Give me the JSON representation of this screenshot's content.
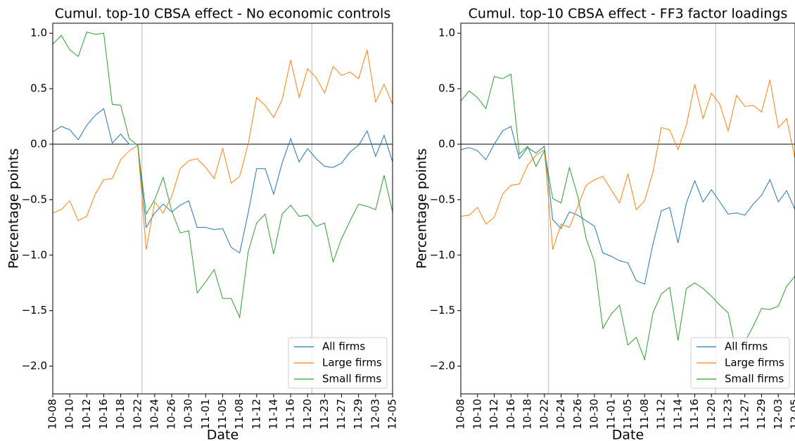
{
  "chart_data": [
    {
      "type": "line",
      "title": "Cumul. top-10 CBSA effect - No economic controls",
      "xlabel": "Date",
      "ylabel": "Percentage points",
      "categories": [
        "10-08",
        null,
        "10-10",
        null,
        "10-12",
        null,
        "10-16",
        null,
        "10-18",
        null,
        "10-22",
        null,
        "10-24",
        null,
        "10-26",
        null,
        "10-30",
        null,
        "11-01",
        null,
        "11-05",
        null,
        "11-08",
        null,
        "11-12",
        null,
        "11-14",
        null,
        "11-16",
        null,
        "11-20",
        null,
        "11-23",
        null,
        "11-27",
        null,
        "11-29",
        null,
        "12-03",
        null,
        "12-05"
      ],
      "series": [
        {
          "name": "All firms",
          "color": "#1f77b4",
          "values": [
            0.11,
            0.16,
            0.13,
            0.04,
            0.17,
            0.26,
            0.32,
            0.01,
            0.09,
            0.0,
            0.0,
            -0.75,
            -0.62,
            -0.54,
            -0.61,
            -0.55,
            -0.51,
            -0.75,
            -0.75,
            -0.77,
            -0.76,
            -0.93,
            -0.98,
            -0.62,
            -0.22,
            -0.22,
            -0.45,
            -0.17,
            0.05,
            -0.16,
            -0.04,
            -0.13,
            -0.2,
            -0.21,
            -0.17,
            -0.07,
            -0.01,
            0.12,
            -0.11,
            0.08,
            -0.16
          ]
        },
        {
          "name": "Large firms",
          "color": "#ff7f0e",
          "values": [
            -0.62,
            -0.59,
            -0.51,
            -0.69,
            -0.65,
            -0.45,
            -0.32,
            -0.31,
            -0.14,
            -0.06,
            -0.01,
            -0.95,
            -0.52,
            -0.62,
            -0.47,
            -0.22,
            -0.15,
            -0.13,
            -0.21,
            -0.31,
            -0.04,
            -0.35,
            -0.29,
            0.0,
            0.42,
            0.35,
            0.24,
            0.4,
            0.76,
            0.42,
            0.68,
            0.6,
            0.46,
            0.7,
            0.62,
            0.65,
            0.59,
            0.85,
            0.38,
            0.54,
            0.36
          ]
        },
        {
          "name": "Small firms",
          "color": "#2ca02c",
          "values": [
            0.9,
            0.98,
            0.85,
            0.79,
            1.01,
            0.99,
            1.0,
            0.36,
            0.35,
            0.05,
            -0.01,
            -0.63,
            -0.5,
            -0.3,
            -0.6,
            -0.8,
            -0.78,
            -1.34,
            -1.24,
            -1.13,
            -1.39,
            -1.39,
            -1.56,
            -0.97,
            -0.71,
            -0.63,
            -0.99,
            -0.63,
            -0.55,
            -0.65,
            -0.64,
            -0.74,
            -0.71,
            -1.06,
            -0.85,
            -0.69,
            -0.54,
            -0.56,
            -0.59,
            -0.28,
            -0.61
          ]
        }
      ],
      "ylim": [
        -2.25,
        1.09
      ],
      "yticks": [
        {
          "value": -2.0,
          "label": "−2.0"
        },
        {
          "value": -1.5,
          "label": "−1.5"
        },
        {
          "value": -1.0,
          "label": "−1.0"
        },
        {
          "value": -0.5,
          "label": "−0.5"
        },
        {
          "value": 0.0,
          "label": "0.0"
        },
        0.5,
        {
          "value": 1.0,
          "label": "1.0"
        }
      ],
      "hline": 0,
      "vlines": [
        "10-22",
        "11-20"
      ],
      "legend": "lower right"
    },
    {
      "type": "line",
      "title": "Cumul. top-10 CBSA effect - FF3 factor loadings",
      "xlabel": "Date",
      "ylabel": "Percentage points",
      "categories": [
        "10-08",
        null,
        "10-10",
        null,
        "10-12",
        null,
        "10-16",
        null,
        "10-18",
        null,
        "10-22",
        null,
        "10-24",
        null,
        "10-26",
        null,
        "10-30",
        null,
        "11-01",
        null,
        "11-05",
        null,
        "11-08",
        null,
        "11-12",
        null,
        "11-14",
        null,
        "11-16",
        null,
        "11-20",
        null,
        "11-23",
        null,
        "11-27",
        null,
        "11-29",
        null,
        "12-03",
        null,
        "12-05"
      ],
      "series": [
        {
          "name": "All firms",
          "color": "#1f77b4",
          "values": [
            -0.05,
            -0.03,
            -0.06,
            -0.14,
            0.0,
            0.12,
            0.16,
            -0.13,
            -0.03,
            -0.08,
            -0.02,
            -0.68,
            -0.76,
            -0.61,
            -0.64,
            -0.69,
            -0.74,
            -0.98,
            -1.01,
            -1.05,
            -1.07,
            -1.23,
            -1.26,
            -0.9,
            -0.6,
            -0.57,
            -0.89,
            -0.53,
            -0.33,
            -0.52,
            -0.41,
            -0.52,
            -0.63,
            -0.62,
            -0.64,
            -0.54,
            -0.46,
            -0.32,
            -0.52,
            -0.42,
            -0.59
          ]
        },
        {
          "name": "Large firms",
          "color": "#ff7f0e",
          "values": [
            -0.65,
            -0.64,
            -0.57,
            -0.72,
            -0.66,
            -0.45,
            -0.37,
            -0.36,
            -0.19,
            -0.1,
            -0.05,
            -0.95,
            -0.72,
            -0.75,
            -0.56,
            -0.37,
            -0.32,
            -0.29,
            -0.41,
            -0.53,
            -0.27,
            -0.59,
            -0.51,
            -0.25,
            0.15,
            0.13,
            -0.05,
            0.17,
            0.54,
            0.23,
            0.46,
            0.36,
            0.12,
            0.44,
            0.34,
            0.35,
            0.29,
            0.58,
            0.15,
            0.23,
            -0.13
          ]
        },
        {
          "name": "Small firms",
          "color": "#2ca02c",
          "values": [
            0.39,
            0.48,
            0.42,
            0.32,
            0.61,
            0.59,
            0.63,
            -0.09,
            -0.02,
            -0.2,
            -0.06,
            -0.49,
            -0.53,
            -0.21,
            -0.47,
            -0.85,
            -1.06,
            -1.66,
            -1.53,
            -1.45,
            -1.81,
            -1.74,
            -1.94,
            -1.52,
            -1.35,
            -1.29,
            -1.77,
            -1.3,
            -1.25,
            -1.3,
            -1.37,
            -1.45,
            -1.52,
            -1.88,
            -1.78,
            -1.64,
            -1.48,
            -1.49,
            -1.46,
            -1.28,
            -1.19
          ]
        }
      ],
      "ylim": [
        -2.25,
        1.09
      ],
      "yticks": [
        {
          "value": -2.0,
          "label": "−2.0"
        },
        {
          "value": -1.5,
          "label": "−1.5"
        },
        {
          "value": -1.0,
          "label": "−1.0"
        },
        {
          "value": -0.5,
          "label": "−0.5"
        },
        {
          "value": 0.0,
          "label": "0.0"
        },
        0.5,
        {
          "value": 1.0,
          "label": "1.0"
        }
      ],
      "hline": 0,
      "vlines": [
        "10-22",
        "11-20"
      ],
      "legend": "lower right"
    }
  ]
}
